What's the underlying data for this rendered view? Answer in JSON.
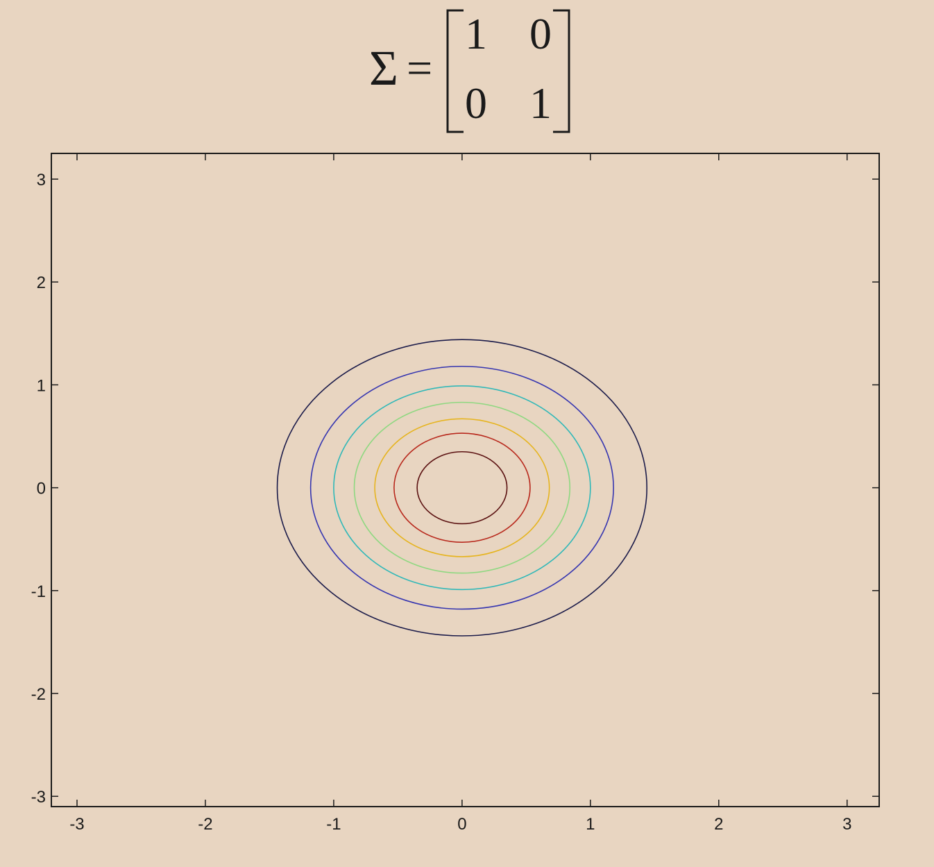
{
  "title": {
    "symbol": "Σ",
    "equals": "=",
    "matrix": [
      [
        "1",
        "0"
      ],
      [
        "0",
        "1"
      ]
    ]
  },
  "chart_data": {
    "type": "contour",
    "title": "Σ = [[1, 0], [0, 1]]",
    "xlabel": "",
    "ylabel": "",
    "xlim": [
      -3.2,
      3.25
    ],
    "ylim": [
      -3.1,
      3.25
    ],
    "xticks": [
      -3,
      -2,
      -1,
      0,
      1,
      2,
      3
    ],
    "yticks": [
      -3,
      -2,
      -1,
      0,
      1,
      2,
      3
    ],
    "xtick_labels": [
      "-3",
      "-2",
      "-1",
      "0",
      "1",
      "2",
      "3"
    ],
    "ytick_labels": [
      "-3",
      "-2",
      "-1",
      "0",
      "1",
      "2",
      "3"
    ],
    "grid": false,
    "center": [
      0,
      0
    ],
    "contours": [
      {
        "radius_x": 1.44,
        "radius_y": 1.44,
        "color": "#1b1b4a"
      },
      {
        "radius_x": 1.18,
        "radius_y": 1.18,
        "color": "#3535b0"
      },
      {
        "radius_x": 1.0,
        "radius_y": 0.99,
        "color": "#2fb8b8"
      },
      {
        "radius_x": 0.84,
        "radius_y": 0.83,
        "color": "#8ed880"
      },
      {
        "radius_x": 0.68,
        "radius_y": 0.67,
        "color": "#e6b41e"
      },
      {
        "radius_x": 0.53,
        "radius_y": 0.53,
        "color": "#b8281c"
      },
      {
        "radius_x": 0.35,
        "radius_y": 0.35,
        "color": "#5a1010"
      }
    ]
  }
}
